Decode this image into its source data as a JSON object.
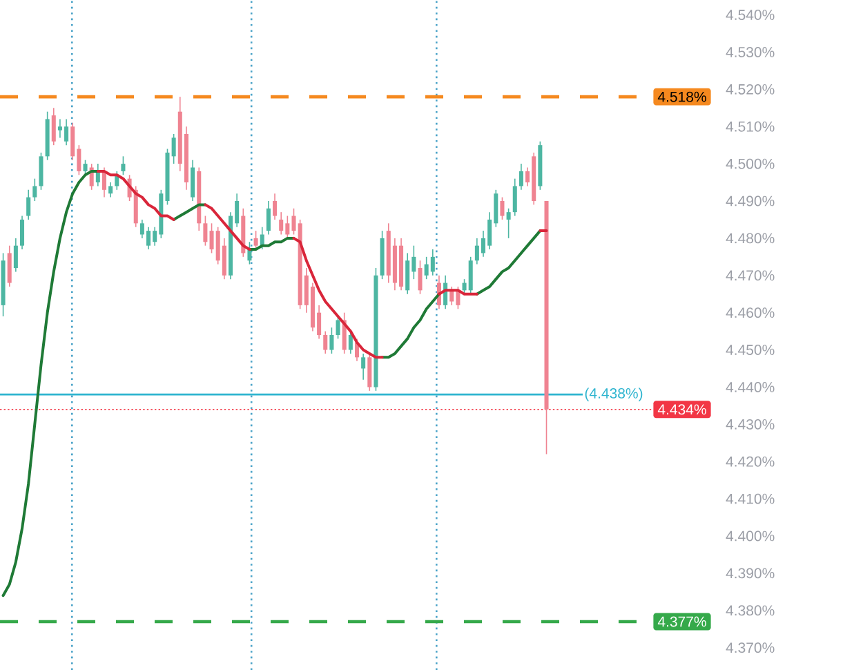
{
  "chart_data": {
    "type": "candlestick",
    "categories": [
      null,
      null,
      null,
      null,
      null,
      null,
      null,
      null,
      null,
      null,
      null,
      null,
      null,
      null,
      null,
      null,
      null,
      null,
      null,
      null,
      null,
      null,
      null,
      null,
      null,
      null,
      null,
      null,
      null,
      null,
      null,
      null,
      null,
      null,
      null,
      null,
      null,
      null,
      null,
      null,
      null,
      null,
      null,
      null,
      null,
      null,
      null,
      null,
      null,
      null,
      null,
      null,
      null,
      null,
      null,
      null,
      null,
      null,
      null,
      null,
      null,
      null,
      null,
      null,
      null,
      null,
      null,
      null,
      null,
      null,
      null,
      null,
      null,
      null,
      null,
      null,
      null,
      null,
      null,
      null,
      null,
      null,
      null,
      null,
      null,
      null,
      null,
      null,
      null,
      null,
      null,
      null,
      null,
      null,
      null,
      null,
      null,
      null,
      null,
      null,
      null,
      null,
      null,
      null,
      null,
      null,
      null,
      null,
      null,
      null,
      null,
      null,
      null
    ],
    "ohlc": [
      [
        4.462,
        4.476,
        4.459,
        4.474
      ],
      [
        4.476,
        4.478,
        4.467,
        4.468
      ],
      [
        4.472,
        4.48,
        4.471,
        4.478
      ],
      [
        4.478,
        4.486,
        4.477,
        4.485
      ],
      [
        4.486,
        4.493,
        4.485,
        4.491
      ],
      [
        4.491,
        4.496,
        4.49,
        4.494
      ],
      [
        4.494,
        4.503,
        4.493,
        4.502
      ],
      [
        4.502,
        4.514,
        4.501,
        4.512
      ],
      [
        4.513,
        4.515,
        4.505,
        4.506
      ],
      [
        4.509,
        4.512,
        4.507,
        4.51
      ],
      [
        4.506,
        4.512,
        4.505,
        4.51
      ],
      [
        4.51,
        4.511,
        4.501,
        4.502
      ],
      [
        4.504,
        4.505,
        4.497,
        4.498
      ],
      [
        4.498,
        4.501,
        4.497,
        4.5
      ],
      [
        4.499,
        4.5,
        4.493,
        4.494
      ],
      [
        4.495,
        4.5,
        4.494,
        4.498
      ],
      [
        4.498,
        4.499,
        4.491,
        4.493
      ],
      [
        4.492,
        4.495,
        4.491,
        4.494
      ],
      [
        4.494,
        4.498,
        4.493,
        4.497
      ],
      [
        4.498,
        4.502,
        4.497,
        4.5
      ],
      [
        4.496,
        4.497,
        4.49,
        4.491
      ],
      [
        4.493,
        4.494,
        4.483,
        4.484
      ],
      [
        4.481,
        4.485,
        4.48,
        4.484
      ],
      [
        4.478,
        4.483,
        4.477,
        4.482
      ],
      [
        4.479,
        4.483,
        4.478,
        4.482
      ],
      [
        4.481,
        4.493,
        4.48,
        4.492
      ],
      [
        4.49,
        4.504,
        4.489,
        4.503
      ],
      [
        4.502,
        4.508,
        4.5,
        4.507
      ],
      [
        4.514,
        4.518,
        4.498,
        4.5
      ],
      [
        4.508,
        4.51,
        4.493,
        4.495
      ],
      [
        4.491,
        4.501,
        4.49,
        4.499
      ],
      [
        4.498,
        4.499,
        4.482,
        4.484
      ],
      [
        4.484,
        4.486,
        4.478,
        4.479
      ],
      [
        4.482,
        4.484,
        4.476,
        4.477
      ],
      [
        4.482,
        4.483,
        4.473,
        4.474
      ],
      [
        4.478,
        4.48,
        4.469,
        4.47
      ],
      [
        4.47,
        4.487,
        4.469,
        4.486
      ],
      [
        4.484,
        4.492,
        4.483,
        4.49
      ],
      [
        4.486,
        4.488,
        4.475,
        4.476
      ],
      [
        4.474,
        4.479,
        4.473,
        4.477
      ],
      [
        4.48,
        4.482,
        4.477,
        4.478
      ],
      [
        4.478,
        4.483,
        4.477,
        4.481
      ],
      [
        4.482,
        4.49,
        4.481,
        4.488
      ],
      [
        4.49,
        4.492,
        4.485,
        4.486
      ],
      [
        4.485,
        4.487,
        4.481,
        4.482
      ],
      [
        4.484,
        4.486,
        4.48,
        4.481
      ],
      [
        4.486,
        4.488,
        4.481,
        4.482
      ],
      [
        4.484,
        4.485,
        4.461,
        4.462
      ],
      [
        4.47,
        4.472,
        4.46,
        4.462
      ],
      [
        4.467,
        4.468,
        4.455,
        4.456
      ],
      [
        4.46,
        4.462,
        4.453,
        4.454
      ],
      [
        4.454,
        4.455,
        4.449,
        4.45
      ],
      [
        4.45,
        4.456,
        4.449,
        4.454
      ],
      [
        4.454,
        4.459,
        4.453,
        4.458
      ],
      [
        4.458,
        4.46,
        4.449,
        4.45
      ],
      [
        4.45,
        4.455,
        4.449,
        4.454
      ],
      [
        4.452,
        4.453,
        4.447,
        4.448
      ],
      [
        4.445,
        4.449,
        4.442,
        4.448
      ],
      [
        4.448,
        4.449,
        4.439,
        4.44
      ],
      [
        4.44,
        4.472,
        4.439,
        4.47
      ],
      [
        4.47,
        4.482,
        4.469,
        4.48
      ],
      [
        4.482,
        4.484,
        4.468,
        4.47
      ],
      [
        4.478,
        4.48,
        4.466,
        4.468
      ],
      [
        4.478,
        4.48,
        4.466,
        4.467
      ],
      [
        4.466,
        4.476,
        4.465,
        4.474
      ],
      [
        4.471,
        4.478,
        4.469,
        4.475
      ],
      [
        4.472,
        4.474,
        4.465,
        4.466
      ],
      [
        4.47,
        4.475,
        4.469,
        4.473
      ],
      [
        4.471,
        4.477,
        4.47,
        4.475
      ],
      [
        4.468,
        4.47,
        4.461,
        4.462
      ],
      [
        4.462,
        4.47,
        4.461,
        4.468
      ],
      [
        4.466,
        4.467,
        4.462,
        4.463
      ],
      [
        4.466,
        4.467,
        4.461,
        4.462
      ],
      [
        4.466,
        4.469,
        4.465,
        4.468
      ],
      [
        4.466,
        4.475,
        4.465,
        4.474
      ],
      [
        4.474,
        4.48,
        4.473,
        4.478
      ],
      [
        4.476,
        4.482,
        4.475,
        4.48
      ],
      [
        4.478,
        4.487,
        4.477,
        4.485
      ],
      [
        4.484,
        4.493,
        4.483,
        4.492
      ],
      [
        4.49,
        4.491,
        4.485,
        4.486
      ],
      [
        4.485,
        4.488,
        4.48,
        4.487
      ],
      [
        4.487,
        4.496,
        4.486,
        4.494
      ],
      [
        4.494,
        4.5,
        4.493,
        4.498
      ],
      [
        4.498,
        4.499,
        4.494,
        4.495
      ],
      [
        4.502,
        4.503,
        4.489,
        4.49
      ],
      [
        4.494,
        4.506,
        4.493,
        4.505
      ],
      [
        4.49,
        4.49,
        4.422,
        4.434
      ],
      null,
      null,
      null,
      null,
      null,
      null,
      null,
      null,
      null,
      null,
      null,
      null,
      null,
      null,
      null,
      null,
      null,
      null,
      null,
      null,
      null,
      null,
      null,
      null,
      null,
      null
    ],
    "colors": [
      "#4db6a2",
      "#ef8391",
      "#4db6a2",
      "#4db6a2",
      "#4db6a2",
      "#4db6a2",
      "#4db6a2",
      "#4db6a2",
      "#ef8391",
      "#4db6a2",
      "#4db6a2",
      "#ef8391",
      "#ef8391",
      "#4db6a2",
      "#ef8391",
      "#4db6a2",
      "#ef8391",
      "#4db6a2",
      "#4db6a2",
      "#4db6a2",
      "#ef8391",
      "#ef8391",
      "#4db6a2",
      "#4db6a2",
      "#4db6a2",
      "#4db6a2",
      "#4db6a2",
      "#4db6a2",
      "#ef8391",
      "#ef8391",
      "#4db6a2",
      "#ef8391",
      "#ef8391",
      "#ef8391",
      "#ef8391",
      "#ef8391",
      "#4db6a2",
      "#4db6a2",
      "#ef8391",
      "#4db6a2",
      "#ef8391",
      "#4db6a2",
      "#4db6a2",
      "#ef8391",
      "#ef8391",
      "#ef8391",
      "#ef8391",
      "#ef8391",
      "#ef8391",
      "#ef8391",
      "#ef8391",
      "#ef8391",
      "#4db6a2",
      "#4db6a2",
      "#ef8391",
      "#4db6a2",
      "#ef8391",
      "#4db6a2",
      "#ef8391",
      "#4db6a2",
      "#4db6a2",
      "#ef8391",
      "#ef8391",
      "#ef8391",
      "#4db6a2",
      "#4db6a2",
      "#ef8391",
      "#4db6a2",
      "#4db6a2",
      "#ef8391",
      "#4db6a2",
      "#ef8391",
      "#ef8391",
      "#4db6a2",
      "#4db6a2",
      "#4db6a2",
      "#4db6a2",
      "#4db6a2",
      "#4db6a2",
      "#ef8391",
      "#4db6a2",
      "#4db6a2",
      "#4db6a2",
      "#ef8391",
      "#ef8391",
      "#4db6a2",
      "#ef8391",
      null,
      null,
      null,
      null,
      null,
      null,
      null,
      null,
      null,
      null,
      null,
      null,
      null,
      null,
      null,
      null,
      null,
      null,
      null,
      null,
      null,
      null,
      null,
      null,
      null,
      null
    ],
    "series": [
      {
        "type": "line",
        "color": "#1f7a36",
        "values": [
          4.384,
          4.387,
          4.393,
          4.402,
          4.414,
          4.43,
          4.446,
          4.46,
          4.471,
          4.48,
          4.487,
          4.492,
          4.495,
          4.497,
          4.498,
          4.498,
          null,
          null,
          null,
          null,
          null,
          null,
          null,
          null,
          null,
          null,
          null,
          4.485,
          4.486,
          4.487,
          4.488,
          4.489,
          4.489,
          null,
          null,
          null,
          null,
          null,
          null,
          4.477,
          4.477,
          4.478,
          4.478,
          4.479,
          4.479,
          4.48,
          4.48,
          null,
          null,
          null,
          null,
          null,
          null,
          null,
          null,
          null,
          null,
          null,
          null,
          null,
          4.448,
          4.448,
          4.449,
          4.451,
          4.453,
          4.456,
          4.458,
          4.461,
          4.463,
          4.465,
          null,
          null,
          null,
          null,
          null,
          4.465,
          4.466,
          4.467,
          4.469,
          4.471,
          4.472,
          4.474,
          4.476,
          4.478,
          4.48,
          4.482,
          null,
          null,
          null,
          null,
          null,
          null,
          null,
          null,
          null,
          null,
          null,
          null,
          null,
          null,
          null,
          null,
          null,
          null,
          null,
          null,
          null,
          null,
          null,
          null,
          null,
          null,
          null
        ]
      },
      {
        "type": "line",
        "color": "#d9263a",
        "values": [
          null,
          null,
          null,
          null,
          null,
          null,
          null,
          null,
          null,
          null,
          null,
          null,
          null,
          null,
          null,
          4.498,
          4.498,
          4.497,
          4.497,
          4.496,
          4.494,
          4.492,
          4.491,
          4.489,
          4.488,
          4.486,
          4.486,
          4.485,
          null,
          null,
          null,
          null,
          4.489,
          4.488,
          4.486,
          4.484,
          4.482,
          4.48,
          4.478,
          4.477,
          null,
          null,
          null,
          null,
          null,
          null,
          4.48,
          4.479,
          4.474,
          4.47,
          4.466,
          4.463,
          4.461,
          4.459,
          4.457,
          4.455,
          4.452,
          4.45,
          4.449,
          4.448,
          4.448,
          null,
          null,
          null,
          null,
          null,
          null,
          null,
          null,
          4.465,
          4.466,
          4.466,
          4.466,
          4.465,
          4.465,
          4.465,
          null,
          null,
          null,
          null,
          null,
          null,
          null,
          null,
          null,
          4.482,
          4.482,
          null,
          null,
          null,
          null,
          null,
          null,
          null,
          null,
          null,
          null,
          null,
          null,
          null,
          null,
          null,
          null,
          null,
          null,
          null,
          null,
          null,
          null,
          null,
          null,
          null,
          null
        ]
      }
    ],
    "ylim": [
      4.364,
      4.544
    ],
    "yticks": [
      {
        "value": 4.37,
        "label": "4.370%"
      },
      {
        "value": 4.38,
        "label": "4.380%"
      },
      {
        "value": 4.39,
        "label": "4.390%"
      },
      {
        "value": 4.4,
        "label": "4.400%"
      },
      {
        "value": 4.41,
        "label": "4.410%"
      },
      {
        "value": 4.42,
        "label": "4.420%"
      },
      {
        "value": 4.43,
        "label": "4.430%"
      },
      {
        "value": 4.44,
        "label": "4.440%"
      },
      {
        "value": 4.45,
        "label": "4.450%"
      },
      {
        "value": 4.46,
        "label": "4.460%"
      },
      {
        "value": 4.47,
        "label": "4.470%"
      },
      {
        "value": 4.48,
        "label": "4.480%"
      },
      {
        "value": 4.49,
        "label": "4.490%"
      },
      {
        "value": 4.5,
        "label": "4.500%"
      },
      {
        "value": 4.51,
        "label": "4.510%"
      },
      {
        "value": 4.52,
        "label": "4.520%"
      },
      {
        "value": 4.53,
        "label": "4.530%"
      },
      {
        "value": 4.54,
        "label": "4.540%"
      }
    ],
    "ref_lines": [
      {
        "axis": "y",
        "value": 4.518,
        "label": "4.518%",
        "color": "#f5891f",
        "line_style": "dashed"
      },
      {
        "axis": "y",
        "value": 4.438,
        "label": "(4.438%)",
        "color": "#2eb4cf",
        "line_style": "solid"
      },
      {
        "axis": "y",
        "value": 4.434,
        "label": "4.434%",
        "color": "#f23645",
        "line_style": "dotted"
      },
      {
        "axis": "y",
        "value": 4.377,
        "label": "4.377%",
        "color": "#35a94a",
        "line_style": "dashed"
      }
    ],
    "tick_labels": "y"
  }
}
